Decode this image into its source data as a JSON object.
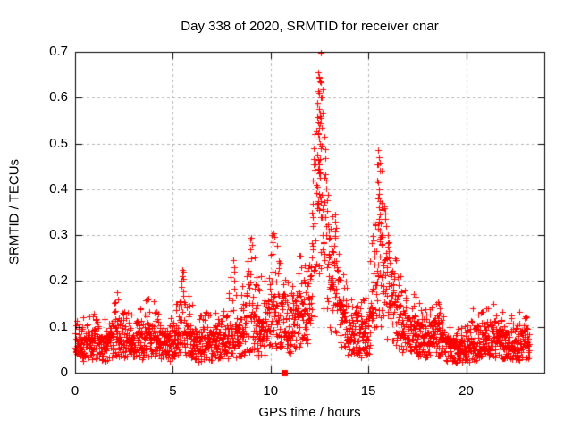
{
  "chart_data": {
    "type": "scatter",
    "title": "Day 338 of 2020, SRMTID for receiver cnar",
    "xlabel": "GPS time / hours",
    "ylabel": "SRMTID / TECUs",
    "xlim": [
      0,
      24
    ],
    "ylim": [
      0,
      0.7
    ],
    "xticks": [
      {
        "v": 0,
        "label": "0"
      },
      {
        "v": 5,
        "label": "5"
      },
      {
        "v": 10,
        "label": "10"
      },
      {
        "v": 15,
        "label": "15"
      },
      {
        "v": 20,
        "label": "20"
      }
    ],
    "yticks": [
      {
        "v": 0,
        "label": "0"
      },
      {
        "v": 0.1,
        "label": "0.1"
      },
      {
        "v": 0.2,
        "label": "0.2"
      },
      {
        "v": 0.3,
        "label": "0.3"
      },
      {
        "v": 0.4,
        "label": "0.4"
      },
      {
        "v": 0.5,
        "label": "0.5"
      },
      {
        "v": 0.6,
        "label": "0.6"
      },
      {
        "v": 0.7,
        "label": "0.7"
      }
    ],
    "grid": true,
    "legend": "none",
    "marker": "plus",
    "colors": {
      "points": "#ff0000",
      "grid": "#b4b4b4",
      "axis": "#000000",
      "text": "#000000",
      "background": "#ffffff"
    },
    "series": [
      {
        "name": "SRMTID",
        "marker": "plus",
        "color": "#ff0000"
      }
    ],
    "sampling": {
      "t_start": 0.0,
      "t_end": 23.25,
      "dt": 0.01,
      "seed": 20338
    },
    "envelope": [
      [
        0.0,
        0.05,
        0.11
      ],
      [
        0.5,
        0.055,
        0.12
      ],
      [
        1.0,
        0.06,
        0.13
      ],
      [
        1.6,
        0.05,
        0.11
      ],
      [
        2.1,
        0.075,
        0.17
      ],
      [
        2.5,
        0.06,
        0.13
      ],
      [
        3.1,
        0.05,
        0.12
      ],
      [
        3.7,
        0.07,
        0.16
      ],
      [
        4.1,
        0.065,
        0.15
      ],
      [
        4.6,
        0.05,
        0.11
      ],
      [
        5.1,
        0.06,
        0.14
      ],
      [
        5.5,
        0.085,
        0.22
      ],
      [
        5.9,
        0.065,
        0.15
      ],
      [
        6.4,
        0.05,
        0.12
      ],
      [
        7.0,
        0.06,
        0.14
      ],
      [
        7.6,
        0.06,
        0.13
      ],
      [
        8.1,
        0.075,
        0.24
      ],
      [
        8.5,
        0.065,
        0.17
      ],
      [
        9.0,
        0.09,
        0.29
      ],
      [
        9.4,
        0.075,
        0.2
      ],
      [
        9.8,
        0.08,
        0.22
      ],
      [
        10.1,
        0.095,
        0.3
      ],
      [
        10.45,
        0.1,
        0.25
      ],
      [
        10.7,
        0.12,
        0.21
      ],
      [
        11.0,
        0.085,
        0.18
      ],
      [
        11.45,
        0.115,
        0.26
      ],
      [
        11.8,
        0.1,
        0.22
      ],
      [
        12.1,
        0.14,
        0.34
      ],
      [
        12.35,
        0.28,
        0.62
      ],
      [
        12.55,
        0.33,
        0.7
      ],
      [
        12.75,
        0.24,
        0.5
      ],
      [
        13.0,
        0.19,
        0.33
      ],
      [
        13.3,
        0.17,
        0.34
      ],
      [
        13.6,
        0.12,
        0.26
      ],
      [
        14.0,
        0.08,
        0.16
      ],
      [
        14.5,
        0.07,
        0.14
      ],
      [
        15.0,
        0.08,
        0.18
      ],
      [
        15.35,
        0.14,
        0.42
      ],
      [
        15.55,
        0.17,
        0.48
      ],
      [
        15.8,
        0.14,
        0.38
      ],
      [
        16.1,
        0.115,
        0.3
      ],
      [
        16.5,
        0.1,
        0.22
      ],
      [
        17.0,
        0.08,
        0.17
      ],
      [
        17.5,
        0.08,
        0.17
      ],
      [
        18.0,
        0.06,
        0.13
      ],
      [
        18.6,
        0.075,
        0.15
      ],
      [
        19.0,
        0.05,
        0.1
      ],
      [
        19.5,
        0.045,
        0.09
      ],
      [
        20.0,
        0.05,
        0.1
      ],
      [
        20.4,
        0.055,
        0.12
      ],
      [
        20.9,
        0.06,
        0.13
      ],
      [
        21.4,
        0.07,
        0.15
      ],
      [
        21.8,
        0.06,
        0.13
      ],
      [
        22.3,
        0.055,
        0.12
      ],
      [
        22.8,
        0.06,
        0.13
      ],
      [
        23.25,
        0.055,
        0.11
      ]
    ],
    "peak_points": [
      [
        2.15,
        0.175
      ],
      [
        2.18,
        0.16
      ],
      [
        5.5,
        0.225
      ],
      [
        5.52,
        0.205
      ],
      [
        8.1,
        0.245
      ],
      [
        8.12,
        0.23
      ],
      [
        8.95,
        0.29
      ],
      [
        8.98,
        0.27
      ],
      [
        9.02,
        0.25
      ],
      [
        10.05,
        0.3
      ],
      [
        10.1,
        0.285
      ],
      [
        10.08,
        0.26
      ],
      [
        11.5,
        0.255
      ],
      [
        12.1,
        0.35
      ],
      [
        12.15,
        0.34
      ],
      [
        12.55,
        0.698
      ],
      [
        12.42,
        0.655
      ],
      [
        12.47,
        0.645
      ],
      [
        12.52,
        0.635
      ],
      [
        12.44,
        0.615
      ],
      [
        12.5,
        0.61
      ],
      [
        12.55,
        0.6
      ],
      [
        12.4,
        0.585
      ],
      [
        12.47,
        0.575
      ],
      [
        12.52,
        0.565
      ],
      [
        12.57,
        0.555
      ],
      [
        12.45,
        0.545
      ],
      [
        12.5,
        0.535
      ],
      [
        12.42,
        0.52
      ],
      [
        12.48,
        0.51
      ],
      [
        12.53,
        0.5
      ],
      [
        12.38,
        0.475
      ],
      [
        12.44,
        0.465
      ],
      [
        12.5,
        0.455
      ],
      [
        12.47,
        0.435
      ],
      [
        12.52,
        0.425
      ],
      [
        12.4,
        0.405
      ],
      [
        12.46,
        0.39
      ],
      [
        12.52,
        0.385
      ],
      [
        12.58,
        0.375
      ],
      [
        12.43,
        0.365
      ],
      [
        12.49,
        0.355
      ],
      [
        12.62,
        0.34
      ],
      [
        12.68,
        0.3
      ],
      [
        12.72,
        0.285
      ],
      [
        13.0,
        0.31
      ],
      [
        13.05,
        0.295
      ],
      [
        13.3,
        0.345
      ],
      [
        13.28,
        0.33
      ],
      [
        13.35,
        0.315
      ],
      [
        15.5,
        0.485
      ],
      [
        15.55,
        0.47
      ],
      [
        15.52,
        0.455
      ],
      [
        15.58,
        0.44
      ],
      [
        15.48,
        0.415
      ],
      [
        15.53,
        0.4
      ],
      [
        15.56,
        0.39
      ],
      [
        15.5,
        0.38
      ],
      [
        15.58,
        0.375
      ],
      [
        15.53,
        0.36
      ],
      [
        15.6,
        0.345
      ],
      [
        15.56,
        0.335
      ],
      [
        15.63,
        0.325
      ],
      [
        15.59,
        0.31
      ],
      [
        15.66,
        0.3
      ],
      [
        15.7,
        0.37
      ],
      [
        15.72,
        0.355
      ],
      [
        16.0,
        0.3
      ],
      [
        16.05,
        0.285
      ],
      [
        17.4,
        0.165
      ],
      [
        18.6,
        0.15
      ],
      [
        18.65,
        0.14
      ],
      [
        20.32,
        0.14
      ],
      [
        21.4,
        0.15
      ]
    ],
    "event_marker": {
      "x": 10.71,
      "y": 0,
      "shape": "filled-square",
      "color": "#ff0000"
    }
  }
}
